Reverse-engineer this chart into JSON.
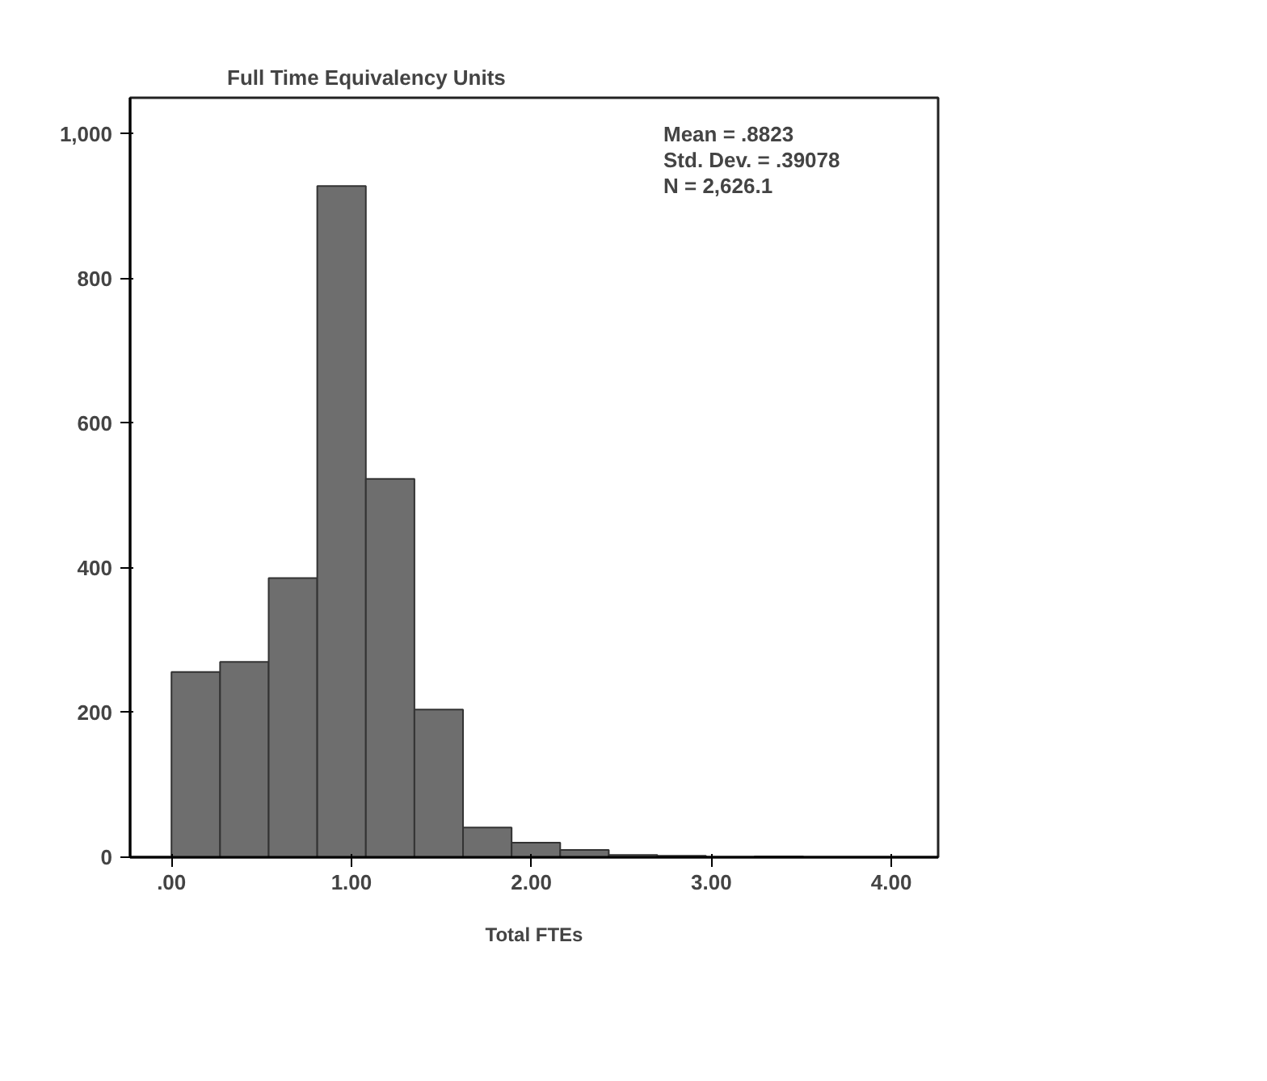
{
  "chart_data": {
    "type": "histogram",
    "title": "Full Time Equivalency Units",
    "xlabel": "Total FTEs",
    "bins": [
      0,
      0.27,
      0.54,
      0.81,
      1.08,
      1.35,
      1.62,
      1.89,
      2.16,
      2.43,
      2.7,
      2.97,
      3.24,
      3.51
    ],
    "values": [
      256,
      270,
      386,
      928,
      523,
      204,
      41,
      20,
      10,
      3,
      2,
      null,
      1
    ],
    "color": "#6e6e6e",
    "xlim": [
      -0.23,
      4.26
    ],
    "ylim": [
      0,
      1050
    ],
    "xticks": [
      {
        "value": 0,
        "label": ".00"
      },
      {
        "value": 1,
        "label": "1.00"
      },
      {
        "value": 2,
        "label": "2.00"
      },
      {
        "value": 3,
        "label": "3.00"
      },
      {
        "value": 4,
        "label": "4.00"
      }
    ],
    "yticks": [
      0,
      200,
      400,
      600,
      800,
      {
        "value": 1000,
        "label": "1,000"
      }
    ],
    "annotations": [
      "Mean = .8823",
      "Std. Dev. = .39078",
      "N = 2,626.1"
    ],
    "grid": false
  }
}
